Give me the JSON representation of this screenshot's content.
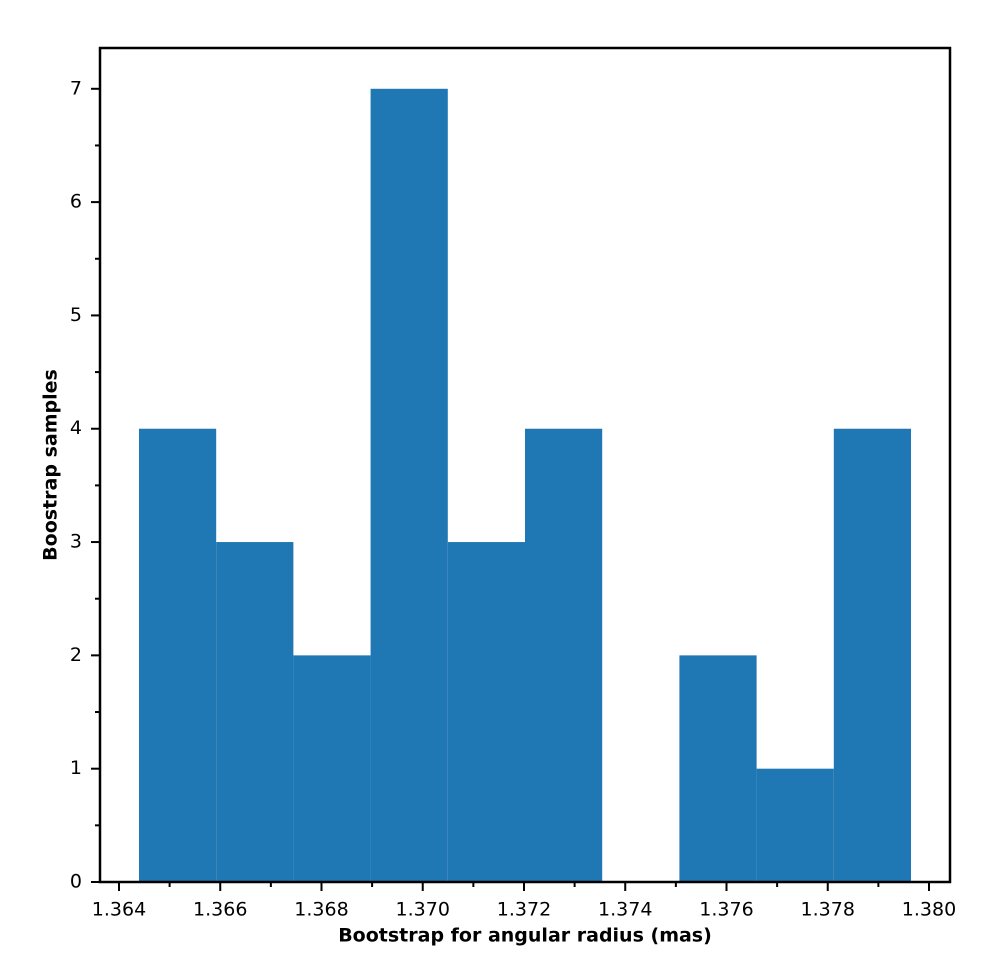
{
  "chart_data": {
    "type": "histogram",
    "xlabel": "Bootstrap for angular radius (mas)",
    "ylabel": "Boostrap samples",
    "bins": [
      1.364395,
      1.36592,
      1.367445,
      1.36897,
      1.370495,
      1.37202,
      1.373545,
      1.37507,
      1.376595,
      1.37812,
      1.379645
    ],
    "values": [
      4,
      3,
      2,
      7,
      3,
      4,
      0,
      2,
      1,
      4
    ],
    "color": "#1f77b4",
    "xlim": [
      1.363625,
      1.380415
    ],
    "ylim": [
      0,
      7.36
    ],
    "xticks": [
      1.364,
      1.366,
      1.368,
      {
        "value": 1.37,
        "label": "1.370"
      },
      1.372,
      1.374,
      1.376,
      1.378,
      {
        "value": 1.38,
        "label": "1.380"
      }
    ],
    "xminorticks": [
      1.365,
      1.367,
      1.369,
      1.371,
      1.373,
      1.375,
      1.377,
      1.379
    ],
    "yticks": [
      0,
      1,
      2,
      3,
      4,
      5,
      6,
      7
    ],
    "yminorticks": [
      0.5,
      1.5,
      2.5,
      3.5,
      4.5,
      5.5,
      6.5
    ]
  }
}
